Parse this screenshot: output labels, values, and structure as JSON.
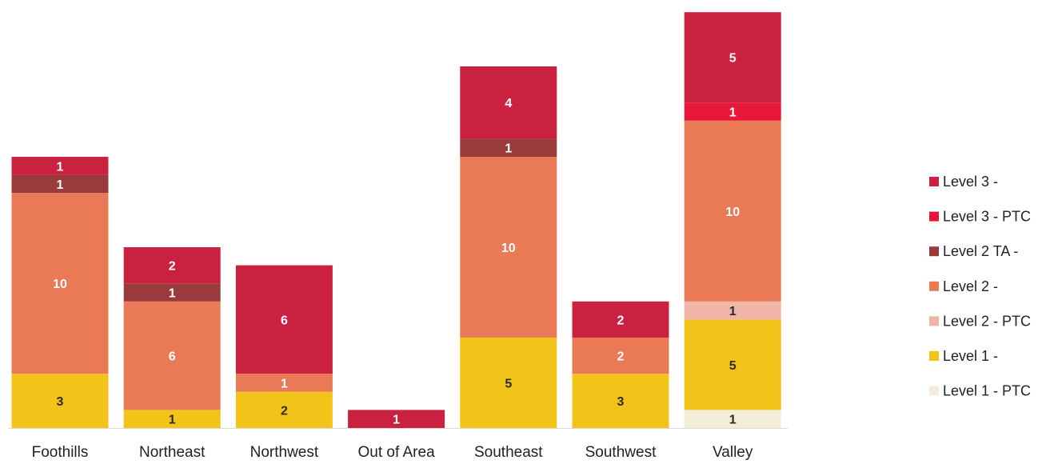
{
  "chart_data": {
    "type": "bar",
    "stacked": true,
    "categories": [
      "Foothills",
      "Northeast",
      "Northwest",
      "Out of Area",
      "Southeast",
      "Southwest",
      "Valley"
    ],
    "series": [
      {
        "name": "Level 1 - PTC",
        "color": "#f3ecd8",
        "values": [
          0,
          0,
          0,
          0,
          0,
          0,
          1
        ]
      },
      {
        "name": "Level 1 -",
        "color": "#f2c318",
        "values": [
          3,
          1,
          2,
          0,
          5,
          3,
          5
        ]
      },
      {
        "name": "Level 2 - PTC",
        "color": "#f1b5a8",
        "values": [
          0,
          0,
          0,
          0,
          0,
          0,
          1
        ]
      },
      {
        "name": "Level 2 -",
        "color": "#ea7a55",
        "values": [
          10,
          6,
          1,
          0,
          10,
          2,
          10
        ]
      },
      {
        "name": "Level 2 TA -",
        "color": "#9a3a3c",
        "values": [
          1,
          1,
          0,
          0,
          1,
          0,
          0
        ]
      },
      {
        "name": "Level 3 - PTC",
        "color": "#e8173a",
        "values": [
          0,
          0,
          0,
          0,
          0,
          0,
          1
        ]
      },
      {
        "name": "Level 3 -",
        "color": "#c9213f",
        "values": [
          1,
          2,
          6,
          1,
          4,
          2,
          5
        ]
      }
    ],
    "legend_order": [
      "Level 3 -",
      "Level 3 - PTC",
      "Level 2 TA -",
      "Level 2 -",
      "Level 2 - PTC",
      "Level 1 -",
      "Level 1 - PTC"
    ],
    "legend_position": "right",
    "ylim": [
      0,
      23
    ],
    "grid": false,
    "data_labels": true,
    "title": "",
    "xlabel": "",
    "ylabel": ""
  }
}
